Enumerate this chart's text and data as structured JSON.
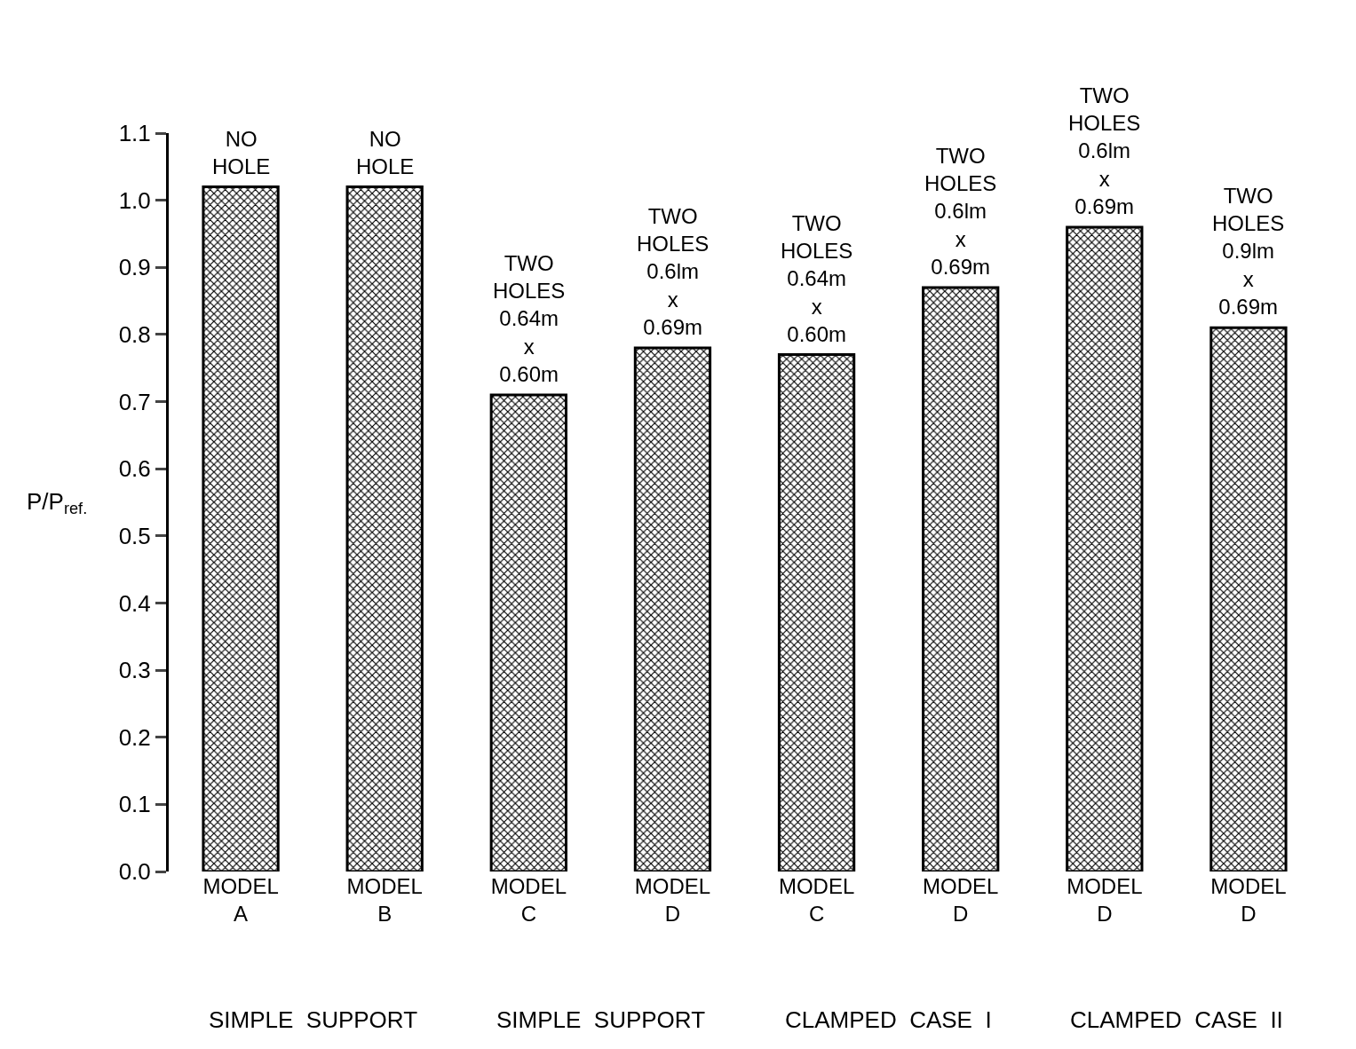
{
  "chart_data": {
    "type": "bar",
    "ylabel": "P/P$_{ref.}$",
    "categories": [
      "MODEL\nA",
      "MODEL\nB",
      "MODEL\nC",
      "MODEL\nD",
      "MODEL\nC",
      "MODEL\nD",
      "MODEL\nD",
      "MODEL\nD"
    ],
    "values": [
      1.02,
      1.02,
      0.71,
      0.78,
      0.77,
      0.87,
      0.96,
      0.81
    ],
    "color": "#000000",
    "ylim": [
      0,
      1.1
    ],
    "yticks": [
      {
        "value": 0,
        "label": "0.0"
      },
      0.1,
      0.2,
      0.3,
      0.4,
      0.5,
      0.6,
      0.7,
      0.8,
      0.9,
      {
        "value": 1,
        "label": "1.0"
      },
      1.1
    ],
    "annotations": [
      "NO\nHOLE",
      "NO\nHOLE",
      "TWO\nHOLES\n0.64m\nx\n0.60m",
      "TWO\nHOLES\n0.6lm\nx\n0.69m",
      "TWO\nHOLES\n0.64m\nx\n0.60m",
      "TWO\nHOLES\n0.6lm\nx\n0.69m",
      "TWO\nHOLES\n0.6lm\nx\n0.69m",
      "TWO\nHOLES\n0.9lm\nx\n0.69m",
      "SIMPLE  SUPPORT",
      "SIMPLE  SUPPORT",
      "CLAMPED  CASE  I",
      "CLAMPED  CASE  II"
    ]
  }
}
